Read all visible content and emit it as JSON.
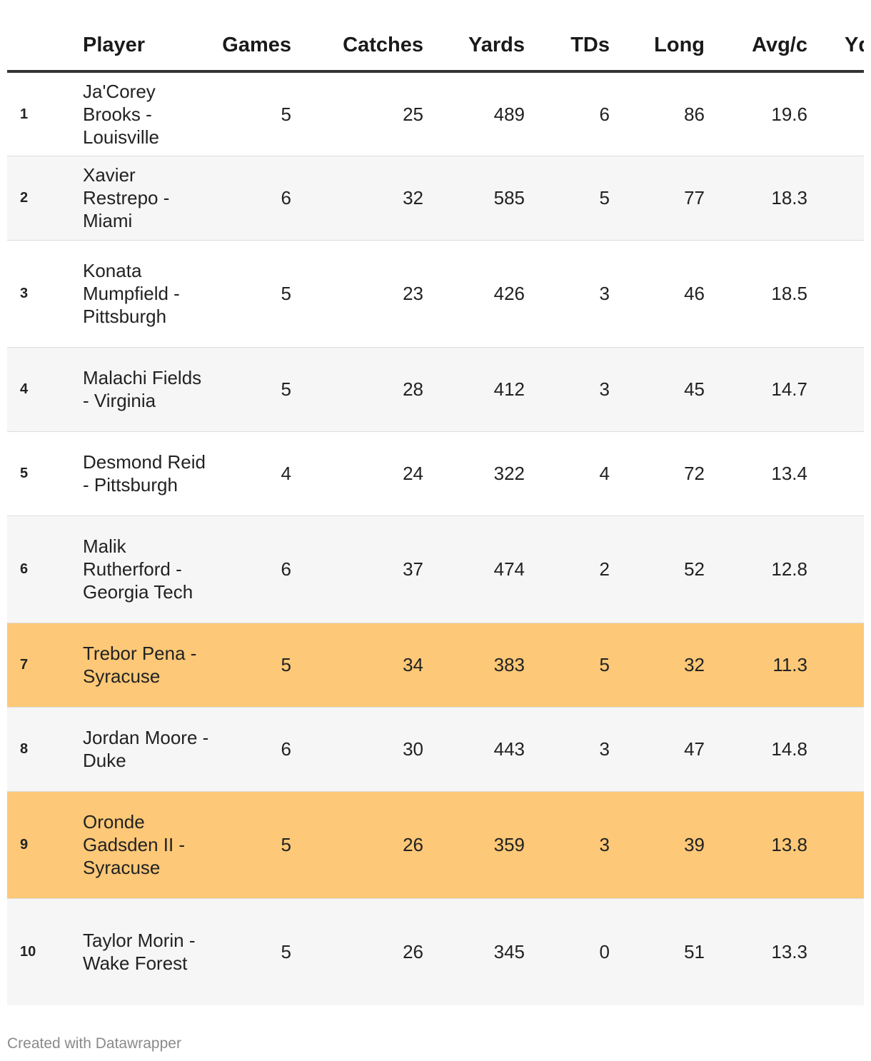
{
  "chart_data": {
    "type": "table",
    "columns": [
      "",
      "Player",
      "Games",
      "Catches",
      "Yards",
      "TDs",
      "Long",
      "Avg/c",
      "Yd"
    ],
    "rows": [
      {
        "rank": "1",
        "player": "Ja'Corey Brooks - Louisville",
        "games": "5",
        "catches": "25",
        "yards": "489",
        "tds": "6",
        "long": "86",
        "avg": "19.6",
        "highlight": false
      },
      {
        "rank": "2",
        "player": "Xavier Restrepo - Miami",
        "games": "6",
        "catches": "32",
        "yards": "585",
        "tds": "5",
        "long": "77",
        "avg": "18.3",
        "highlight": false
      },
      {
        "rank": "3",
        "player": "Konata Mumpfield - Pittsburgh",
        "games": "5",
        "catches": "23",
        "yards": "426",
        "tds": "3",
        "long": "46",
        "avg": "18.5",
        "highlight": false
      },
      {
        "rank": "4",
        "player": "Malachi Fields - Virginia",
        "games": "5",
        "catches": "28",
        "yards": "412",
        "tds": "3",
        "long": "45",
        "avg": "14.7",
        "highlight": false
      },
      {
        "rank": "5",
        "player": "Desmond Reid - Pittsburgh",
        "games": "4",
        "catches": "24",
        "yards": "322",
        "tds": "4",
        "long": "72",
        "avg": "13.4",
        "highlight": false
      },
      {
        "rank": "6",
        "player": "Malik Rutherford - Georgia Tech",
        "games": "6",
        "catches": "37",
        "yards": "474",
        "tds": "2",
        "long": "52",
        "avg": "12.8",
        "highlight": false
      },
      {
        "rank": "7",
        "player": "Trebor Pena - Syracuse",
        "games": "5",
        "catches": "34",
        "yards": "383",
        "tds": "5",
        "long": "32",
        "avg": "11.3",
        "highlight": true
      },
      {
        "rank": "8",
        "player": "Jordan Moore - Duke",
        "games": "6",
        "catches": "30",
        "yards": "443",
        "tds": "3",
        "long": "47",
        "avg": "14.8",
        "highlight": false
      },
      {
        "rank": "9",
        "player": "Oronde Gadsden II - Syracuse",
        "games": "5",
        "catches": "26",
        "yards": "359",
        "tds": "3",
        "long": "39",
        "avg": "13.8",
        "highlight": true
      },
      {
        "rank": "10",
        "player": "Taylor Morin - Wake Forest",
        "games": "5",
        "catches": "26",
        "yards": "345",
        "tds": "0",
        "long": "51",
        "avg": "13.3",
        "highlight": false
      }
    ],
    "highlight_color": "#fdc877"
  },
  "footer": "Created with Datawrapper"
}
